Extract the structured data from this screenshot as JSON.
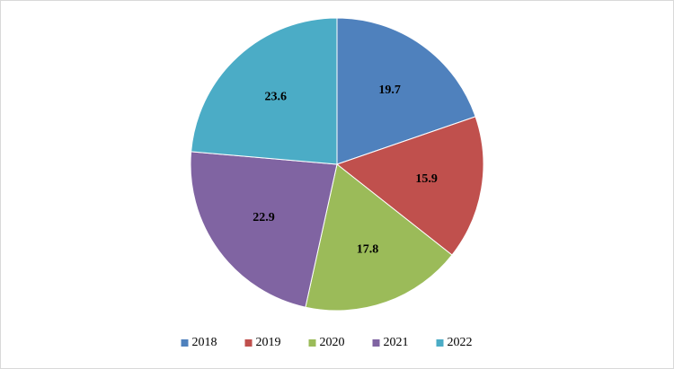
{
  "chart_data": {
    "type": "pie",
    "categories": [
      "2018",
      "2019",
      "2020",
      "2021",
      "2022"
    ],
    "values": [
      19.7,
      15.9,
      17.8,
      22.9,
      23.6
    ],
    "colors": [
      "#4f81bd",
      "#c0504d",
      "#9bbb59",
      "#8064a2",
      "#4bacc6"
    ],
    "legend": "bottom"
  }
}
